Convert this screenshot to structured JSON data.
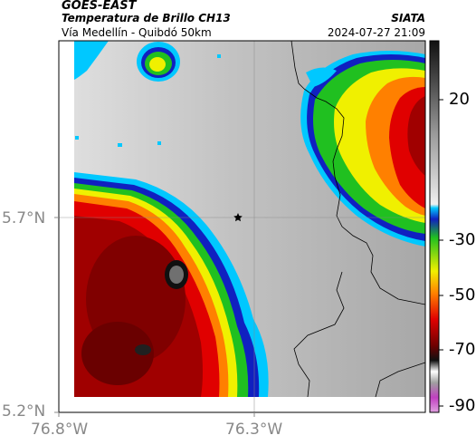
{
  "header": {
    "source": "GOES-EAST",
    "product": "Temperatura de Brillo CH13",
    "region": "Vía Medellín - Quibdó 50km",
    "organization": "SIATA",
    "timestamp": "2024-07-27 21:09"
  },
  "map": {
    "lat_ticks": [
      "5.7°N",
      "5.2°N"
    ],
    "lon_ticks": [
      "76.8°W",
      "76.3°W"
    ],
    "marker": "star-icon"
  },
  "colorbar": {
    "labels": [
      "20",
      "-30",
      "-50",
      "-70",
      "-90"
    ],
    "colors": {
      "warm_gray": "#c8c8c8",
      "cold_gray": "#9a9a9a",
      "cyan": "#00c8ff",
      "blue": "#1020c0",
      "green": "#20c020",
      "yellow": "#f0f000",
      "orange": "#ff8000",
      "red": "#e00000",
      "dark_red": "#700000",
      "black": "#101010",
      "magenta": "#c040c0"
    }
  }
}
